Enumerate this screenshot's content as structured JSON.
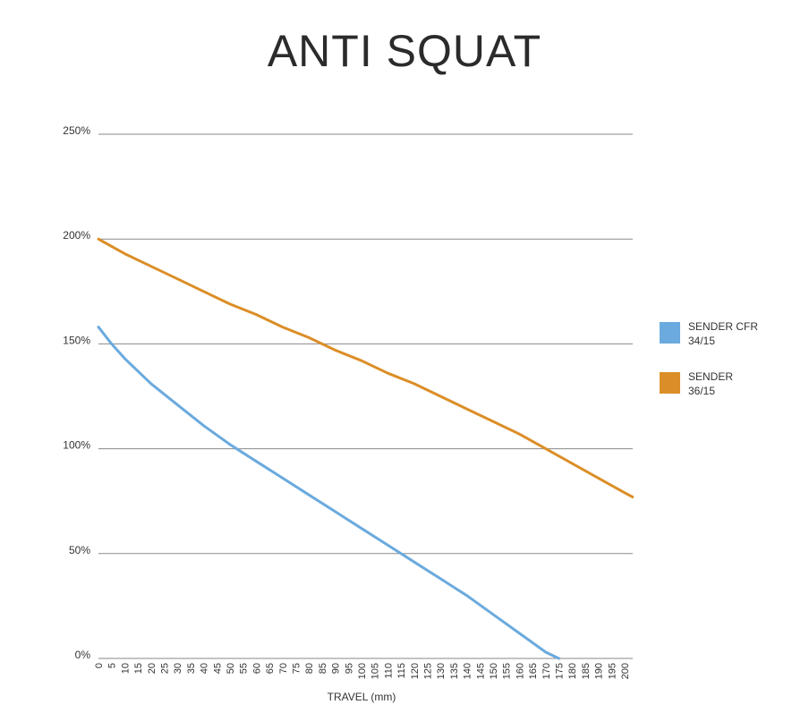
{
  "chart_data": {
    "type": "line",
    "title": "ANTI SQUAT",
    "xlabel": "TRAVEL (mm)",
    "ylabel": "",
    "x_ticks": [
      0,
      5,
      10,
      15,
      20,
      25,
      30,
      35,
      40,
      45,
      50,
      55,
      60,
      65,
      70,
      75,
      80,
      85,
      90,
      95,
      100,
      105,
      110,
      115,
      120,
      125,
      130,
      135,
      140,
      145,
      150,
      155,
      160,
      165,
      170,
      175,
      180,
      185,
      190,
      195,
      200
    ],
    "y_ticks": [
      "0%",
      "50%",
      "100%",
      "150%",
      "200%",
      "250%"
    ],
    "y_tick_values": [
      0,
      50,
      100,
      150,
      200,
      250
    ],
    "xlim": [
      0,
      203
    ],
    "ylim": [
      0,
      250
    ],
    "grid": true,
    "legend_position": "right",
    "series": [
      {
        "name": "SENDER CFR 34/15",
        "color": "#6aaade",
        "x": [
          0,
          5,
          10,
          20,
          30,
          40,
          50,
          55,
          60,
          70,
          80,
          90,
          100,
          110,
          120,
          130,
          140,
          150,
          160,
          170,
          175
        ],
        "y": [
          158,
          150,
          143,
          131,
          121,
          111,
          102,
          98,
          94,
          86,
          78,
          70,
          62,
          54,
          46,
          38,
          30,
          21,
          12,
          3,
          0
        ]
      },
      {
        "name": "SENDER 36/15",
        "color": "#db8e27",
        "x": [
          0,
          10,
          20,
          30,
          40,
          50,
          60,
          70,
          80,
          90,
          100,
          110,
          120,
          130,
          140,
          150,
          160,
          170,
          180,
          190,
          200,
          203
        ],
        "y": [
          200,
          193,
          187,
          181,
          175,
          169,
          164,
          158,
          153,
          147,
          142,
          136,
          131,
          125,
          119,
          113,
          107,
          100,
          93,
          86,
          79,
          77
        ]
      }
    ]
  }
}
